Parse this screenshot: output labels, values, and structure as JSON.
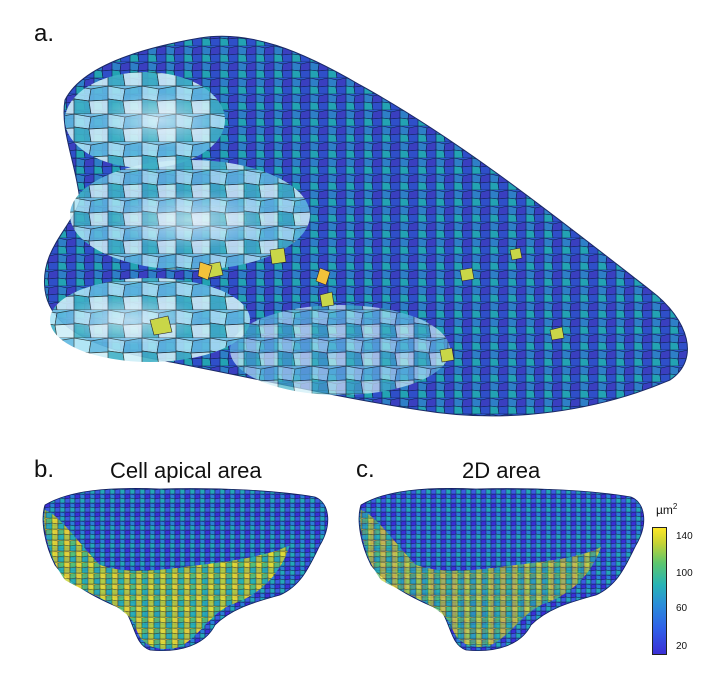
{
  "panels": {
    "a": {
      "letter": "a."
    },
    "b": {
      "letter": "b.",
      "title": "Cell apical area"
    },
    "c": {
      "letter": "c.",
      "title": "2D area"
    }
  },
  "colorbar": {
    "unit_base": "µm",
    "unit_exp": "2",
    "ticks": [
      "140",
      "100",
      "60",
      "20"
    ],
    "colors": [
      "#3b2fd6",
      "#3060e8",
      "#2a8fd8",
      "#27b4b6",
      "#5cc66e",
      "#c6d334",
      "#fde725"
    ]
  }
}
